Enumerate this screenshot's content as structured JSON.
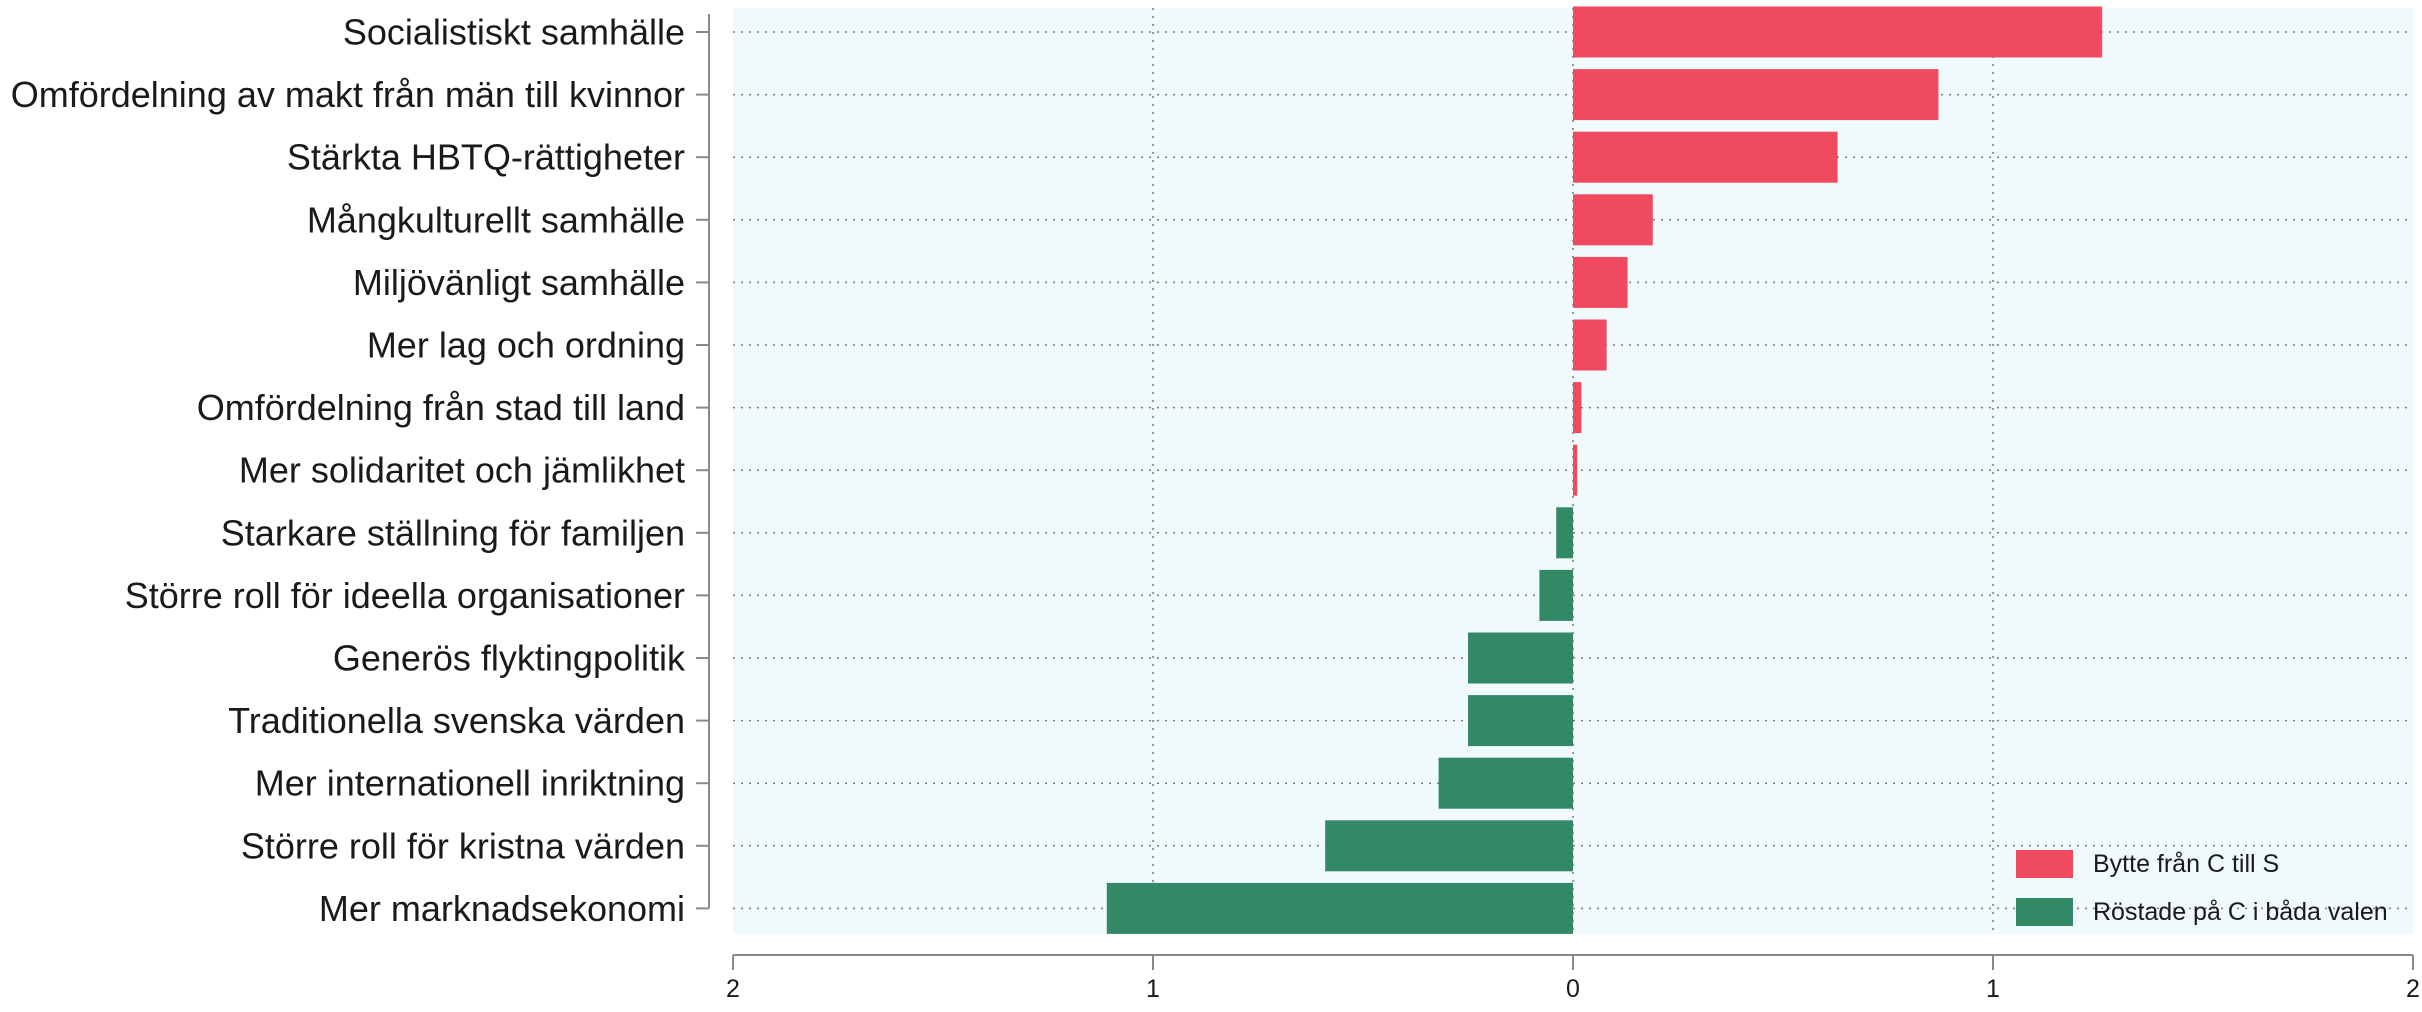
{
  "chart_data": {
    "type": "bar",
    "orientation": "horizontal",
    "categories": [
      "Socialistiskt samhälle",
      "Omfördelning av makt från män till kvinnor",
      "Stärkta HBTQ-rättigheter",
      "Mångkulturellt samhälle",
      "Miljövänligt samhälle",
      "Mer lag och ordning",
      "Omfördelning från stad till land",
      "Mer solidaritet och jämlikhet",
      "Starkare ställning för familjen",
      "Större roll för ideella organisationer",
      "Generös flyktingpolitik",
      "Traditionella svenska värden",
      "Mer internationell inriktning",
      "Större roll för kristna värden",
      "Mer marknadsekonomi"
    ],
    "values": [
      1.26,
      0.87,
      0.63,
      0.19,
      0.13,
      0.08,
      0.02,
      0.01,
      -0.04,
      -0.08,
      -0.25,
      -0.25,
      -0.32,
      -0.59,
      -1.11
    ],
    "series": [
      {
        "name": "Bytte från C till S",
        "color": "#ef4a60"
      },
      {
        "name": "Röstade på C i båda valen",
        "color": "#338866"
      }
    ],
    "xlim": [
      -2,
      2
    ],
    "xticks": [
      {
        "value": -2,
        "label": "2"
      },
      {
        "value": -1,
        "label": "1"
      },
      {
        "value": 0,
        "label": "0"
      },
      {
        "value": 1,
        "label": "1"
      },
      {
        "value": 2,
        "label": "2"
      }
    ],
    "title": "",
    "xlabel": "",
    "ylabel": "",
    "grid": true,
    "legend_position": "bottom-right",
    "plot_background": "#f0f9fc"
  }
}
